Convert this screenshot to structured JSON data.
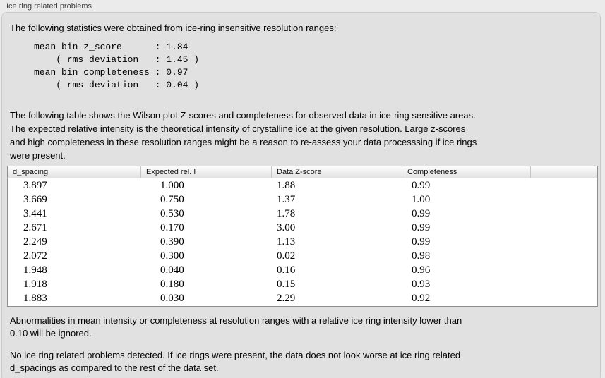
{
  "panel": {
    "title": "Ice ring related problems"
  },
  "stats": {
    "intro": "The following statistics were obtained from ice-ring insensitive resolution ranges:",
    "block": "mean bin z_score      : 1.84\n    ( rms deviation   : 1.45 )\nmean bin completeness : 0.97\n    ( rms deviation   : 0.04 )",
    "mean_bin_z_score": "1.84",
    "z_score_rms_deviation": "1.45",
    "mean_bin_completeness": "0.97",
    "completeness_rms_deviation": "0.04"
  },
  "table_description": "The following table shows the Wilson plot Z-scores and completeness for observed data in ice-ring sensitive areas.\nThe expected relative intensity is the theoretical intensity of crystalline ice at the given resolution. Large z-scores\nand high completeness in these resolution ranges might be a reason to re-assess your data processsing if ice rings\nwere present.",
  "table": {
    "headers": [
      "d_spacing",
      "Expected rel. I",
      "Data Z-score",
      "Completeness"
    ],
    "rows": [
      [
        "3.897",
        "1.000",
        "1.88",
        "0.99"
      ],
      [
        "3.669",
        "0.750",
        "1.37",
        "1.00"
      ],
      [
        "3.441",
        "0.530",
        "1.78",
        "0.99"
      ],
      [
        "2.671",
        "0.170",
        "3.00",
        "0.99"
      ],
      [
        "2.249",
        "0.390",
        "1.13",
        "0.99"
      ],
      [
        "2.072",
        "0.300",
        "0.02",
        "0.98"
      ],
      [
        "1.948",
        "0.040",
        "0.16",
        "0.96"
      ],
      [
        "1.918",
        "0.180",
        "0.15",
        "0.93"
      ],
      [
        "1.883",
        "0.030",
        "2.29",
        "0.92"
      ]
    ]
  },
  "notes": {
    "ignore_note": "Abnormalities in mean intensity or completeness at resolution ranges with a relative ice ring intensity lower than\n0.10 will be ignored.",
    "conclusion": "No ice ring related problems detected. If ice rings were present, the data does not look worse at ice ring related\nd_spacings as compared to the rest of the data set."
  },
  "colors": {
    "page_bg": "#ebebeb",
    "group_box_bg": "#e1e1e1",
    "table_bg": "#ffffff",
    "table_border": "#8f8f8f",
    "text": "#000000"
  }
}
